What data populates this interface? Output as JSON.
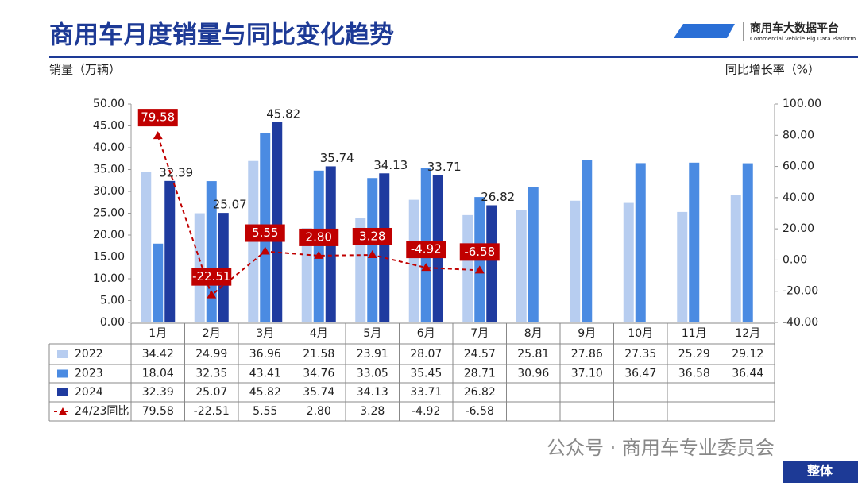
{
  "chart_data": {
    "type": "bar",
    "title": "商用车月度销量与同比变化趋势",
    "logo_title": "商用车大数据平台",
    "logo_subtitle": "Commercial Vehicle Big Data Platform",
    "ylabel": "销量（万辆）",
    "y2label": "同比增长率（%）",
    "watermark": "公众号 · 商用车专业委员会",
    "badge": "整体",
    "categories": [
      "1月",
      "2月",
      "3月",
      "4月",
      "5月",
      "6月",
      "7月",
      "8月",
      "9月",
      "10月",
      "11月",
      "12月"
    ],
    "series": [
      {
        "name": "2022",
        "color": "#b7cdf0",
        "type": "bar",
        "values": [
          34.42,
          24.99,
          36.96,
          21.58,
          23.91,
          28.07,
          24.57,
          25.81,
          27.86,
          27.35,
          25.29,
          29.12
        ],
        "value_labels": [
          "34.42",
          "24.99",
          "36.96",
          "21.58",
          "23.91",
          "28.07",
          "24.57",
          "25.81",
          "27.86",
          "27.35",
          "25.29",
          "29.12"
        ]
      },
      {
        "name": "2023",
        "color": "#4b8be2",
        "type": "bar",
        "values": [
          18.04,
          32.35,
          43.41,
          34.76,
          33.05,
          35.45,
          28.71,
          30.96,
          37.1,
          36.47,
          36.58,
          36.44
        ],
        "value_labels": [
          "18.04",
          "32.35",
          "43.41",
          "34.76",
          "33.05",
          "35.45",
          "28.71",
          "30.96",
          "37.10",
          "36.47",
          "36.58",
          "36.44"
        ]
      },
      {
        "name": "2024",
        "color": "#1f3b9f",
        "type": "bar",
        "values": [
          32.39,
          25.07,
          45.82,
          35.74,
          34.13,
          33.71,
          26.82,
          null,
          null,
          null,
          null,
          null
        ],
        "value_labels": [
          "32.39",
          "25.07",
          "45.82",
          "35.74",
          "34.13",
          "33.71",
          "26.82",
          null,
          null,
          null,
          null,
          null
        ]
      },
      {
        "name": "24/23同比",
        "color": "#c00000",
        "type": "line",
        "axis": "y2",
        "values": [
          79.58,
          -22.51,
          5.55,
          2.8,
          3.28,
          -4.92,
          -6.58,
          null,
          null,
          null,
          null,
          null
        ],
        "value_labels": [
          "79.58",
          "-22.51",
          "5.55",
          "2.80",
          "3.28",
          "-4.92",
          "-6.58",
          null,
          null,
          null,
          null,
          null
        ]
      }
    ],
    "ylim": [
      0,
      50
    ],
    "yticks": [
      {
        "value": 0,
        "label": "0.00"
      },
      {
        "value": 5,
        "label": "5.00"
      },
      {
        "value": 10,
        "label": "10.00"
      },
      {
        "value": 15,
        "label": "15.00"
      },
      {
        "value": 20,
        "label": "20.00"
      },
      {
        "value": 25,
        "label": "25.00"
      },
      {
        "value": 30,
        "label": "30.00"
      },
      {
        "value": 35,
        "label": "35.00"
      },
      {
        "value": 40,
        "label": "40.00"
      },
      {
        "value": 45,
        "label": "45.00"
      },
      {
        "value": 50,
        "label": "50.00"
      }
    ],
    "y2lim": [
      -40,
      100
    ],
    "y2ticks": [
      {
        "value": -40,
        "label": "-40.00"
      },
      {
        "value": -20,
        "label": "-20.00"
      },
      {
        "value": 0,
        "label": "0.00"
      },
      {
        "value": 20,
        "label": "20.00"
      },
      {
        "value": 40,
        "label": "40.00"
      },
      {
        "value": 60,
        "label": "60.00"
      },
      {
        "value": 80,
        "label": "80.00"
      },
      {
        "value": 100,
        "label": "100.00"
      }
    ]
  }
}
